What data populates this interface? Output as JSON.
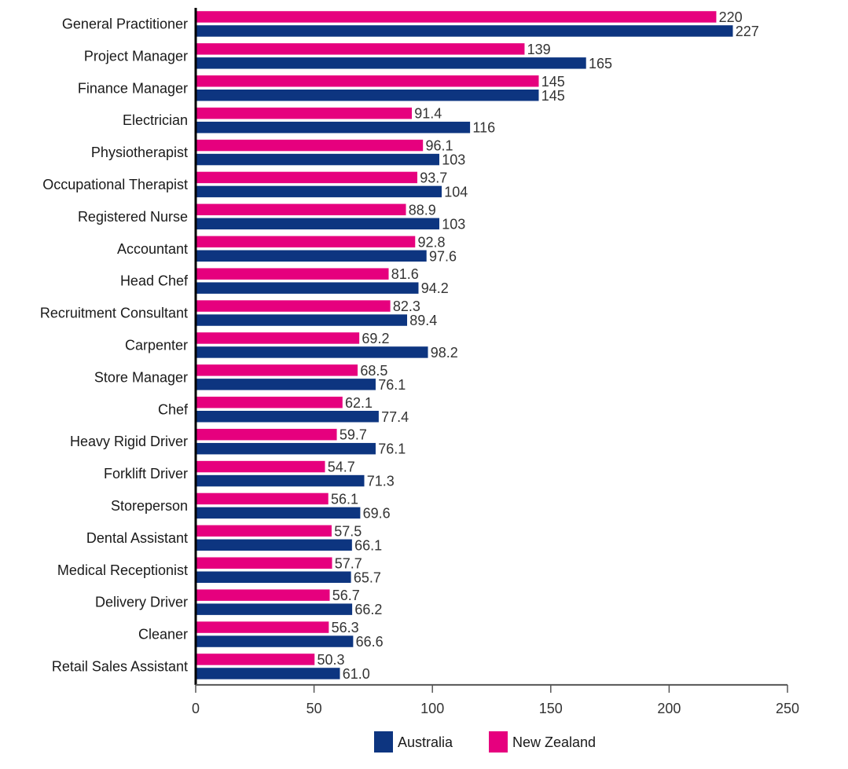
{
  "chart_data": {
    "type": "bar",
    "orientation": "horizontal",
    "title": "",
    "xlabel": "",
    "ylabel": "",
    "xlim": [
      0,
      250
    ],
    "xticks": [
      0,
      50,
      100,
      150,
      200,
      250
    ],
    "grid": false,
    "legend_position": "bottom-center",
    "categories": [
      "General Practitioner",
      "Project Manager",
      "Finance Manager",
      "Electrician",
      "Physiotherapist",
      "Occupational Therapist",
      "Registered Nurse",
      "Accountant",
      "Head Chef",
      "Recruitment Consultant",
      "Carpenter",
      "Store Manager",
      "Chef",
      "Heavy Rigid Driver",
      "Forklift Driver",
      "Storeperson",
      "Dental Assistant",
      "Medical Receptionist",
      "Delivery Driver",
      "Cleaner",
      "Retail Sales Assistant"
    ],
    "series": [
      {
        "name": "New Zealand",
        "color": "#e6007e",
        "values": [
          220,
          139,
          145,
          91.4,
          96.1,
          93.7,
          88.9,
          92.8,
          81.6,
          82.3,
          69.2,
          68.5,
          62.1,
          59.7,
          54.7,
          56.1,
          57.5,
          57.7,
          56.7,
          56.3,
          50.3
        ],
        "labels": [
          "220",
          "139",
          "145",
          "91.4",
          "96.1",
          "93.7",
          "88.9",
          "92.8",
          "81.6",
          "82.3",
          "69.2",
          "68.5",
          "62.1",
          "59.7",
          "54.7",
          "56.1",
          "57.5",
          "57.7",
          "56.7",
          "56.3",
          "50.3"
        ]
      },
      {
        "name": "Australia",
        "color": "#0d3580",
        "values": [
          227,
          165,
          145,
          116,
          103,
          104,
          103,
          97.6,
          94.2,
          89.4,
          98.2,
          76.1,
          77.4,
          76.1,
          71.3,
          69.6,
          66.1,
          65.7,
          66.2,
          66.6,
          61.0
        ],
        "labels": [
          "227",
          "165",
          "145",
          "116",
          "103",
          "104",
          "103",
          "97.6",
          "94.2",
          "89.4",
          "98.2",
          "76.1",
          "77.4",
          "76.1",
          "71.3",
          "69.6",
          "66.1",
          "65.7",
          "66.2",
          "66.6",
          "61.0"
        ]
      }
    ],
    "legend": [
      {
        "name": "Australia",
        "color": "#0d3580"
      },
      {
        "name": "New Zealand",
        "color": "#e6007e"
      }
    ]
  }
}
